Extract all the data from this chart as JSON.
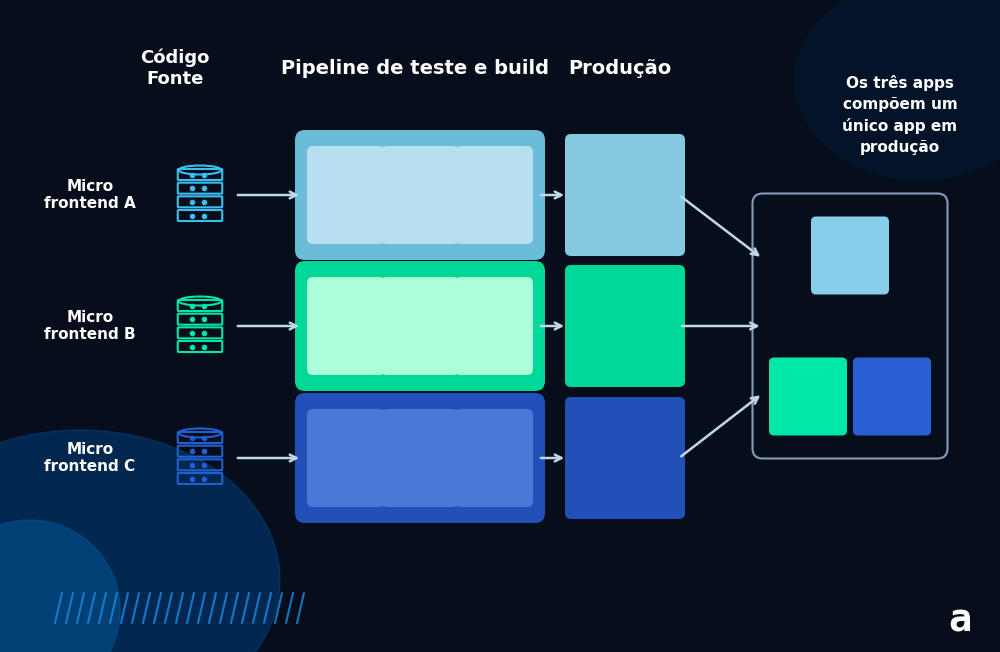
{
  "bg_color": "#060d1b",
  "text_color": "#ffffff",
  "title_header": "Código\nFonte",
  "pipeline_header": "Pipeline de teste e build",
  "producao_header": "Produção",
  "combined_text": "Os três apps\ncompõem um\núnico app em\nprodução",
  "rows": [
    {
      "label": "Micro\nfrontend A",
      "db_color": "#3bbfef",
      "pipeline_bg": "#6bbcd8",
      "pipeline_inner": "#b8dff0",
      "prod_color": "#85c8e0",
      "combined_color": "#87ceeb"
    },
    {
      "label": "Micro\nfrontend B",
      "db_color": "#00e8a8",
      "pipeline_bg": "#00d898",
      "pipeline_inner": "#aaffd8",
      "prod_color": "#00d898",
      "combined_color": "#00e8a8"
    },
    {
      "label": "Micro\nfrontend C",
      "db_color": "#2060d0",
      "pipeline_bg": "#2050b8",
      "pipeline_inner": "#4878d8",
      "prod_color": "#2050b8",
      "combined_color": "#2a5fd4"
    }
  ],
  "slash_color": "#1a80d4",
  "logo_color": "#ffffff",
  "arrow_color": "#c0d8e8",
  "combined_bg": "#060d1b",
  "combined_border": "#8899bb",
  "glow_left_color": "#003870",
  "glow_right_color": "#001830"
}
